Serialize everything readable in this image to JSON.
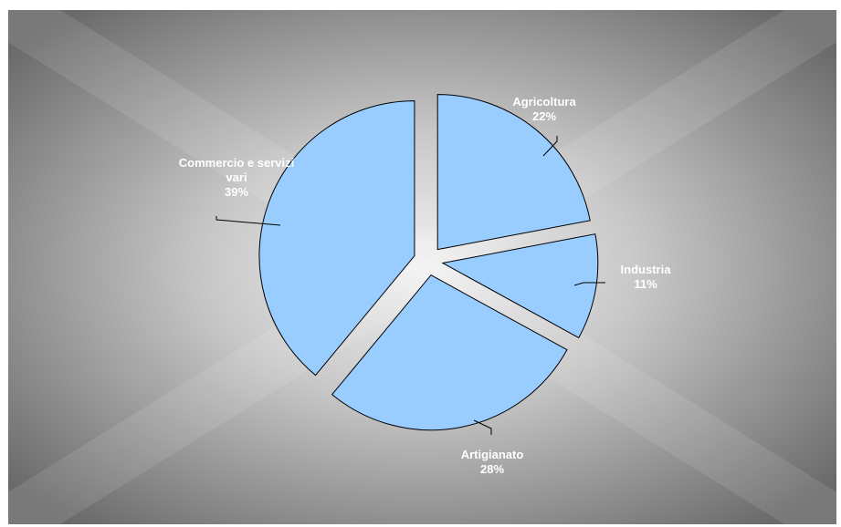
{
  "chart_data": {
    "type": "pie",
    "exploded": true,
    "slice_color": "#99CCFF",
    "slice_stroke": "#000000",
    "background": "radial-gradient gray",
    "slices": [
      {
        "label_lines": [
          "Agricoltura"
        ],
        "value": 22,
        "value_text": "22%"
      },
      {
        "label_lines": [
          "Industria"
        ],
        "value": 11,
        "value_text": "11%"
      },
      {
        "label_lines": [
          "Artigianato"
        ],
        "value": 28,
        "value_text": "28%"
      },
      {
        "label_lines": [
          "Commercio e servizi",
          "vari"
        ],
        "value": 39,
        "value_text": "39%"
      }
    ]
  }
}
